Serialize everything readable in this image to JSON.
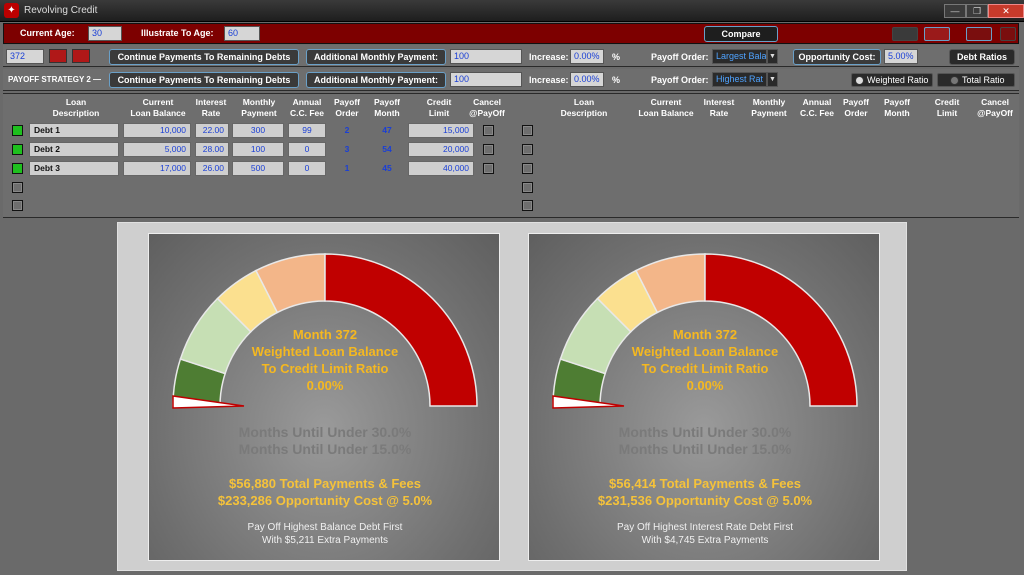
{
  "window": {
    "title": "Revolving Credit",
    "controls": [
      "—",
      "❐",
      "✕"
    ]
  },
  "ages": {
    "current_label": "Current Age:",
    "current_value": "30",
    "illustrate_label": "Illustrate To Age:",
    "illustrate_value": "60",
    "compare_label": "Compare"
  },
  "strategy1": {
    "month_value": "372",
    "continue_label": "Continue Payments To Remaining Debts",
    "additional_label": "Additional Monthly Payment:",
    "additional_value": "100",
    "increase_label": "Increase:",
    "increase_value": "0.00%",
    "pct": "%",
    "order_label": "Payoff Order:",
    "order_value": "Largest Bala",
    "opp_label": "Opportunity Cost:",
    "opp_value": "5.00%",
    "debt_ratios_label": "Debt Ratios"
  },
  "strategy2": {
    "title": "PAYOFF STRATEGY 2 —",
    "continue_label": "Continue Payments To Remaining Debts",
    "additional_label": "Additional Monthly Payment:",
    "additional_value": "100",
    "increase_label": "Increase:",
    "increase_value": "0.00%",
    "pct": "%",
    "order_label": "Payoff Order:",
    "order_value": "Highest Rat",
    "weighted_label": "Weighted Ratio",
    "total_label": "Total Ratio"
  },
  "table": {
    "headers": [
      "Loan\nDescription",
      "Current\nLoan Balance",
      "Interest\nRate",
      "Monthly\nPayment",
      "Annual\nC.C. Fee",
      "Payoff\nOrder",
      "Payoff\nMonth",
      "Credit\nLimit",
      "Cancel\n@PayOff"
    ],
    "rows": [
      {
        "desc": "Debt 1",
        "balance": "10,000",
        "rate": "22.00",
        "payment": "300",
        "fee": "99",
        "order": "2",
        "month": "47",
        "limit": "15,000"
      },
      {
        "desc": "Debt 2",
        "balance": "5,000",
        "rate": "28.00",
        "payment": "100",
        "fee": "0",
        "order": "3",
        "month": "54",
        "limit": "20,000"
      },
      {
        "desc": "Debt 3",
        "balance": "17,000",
        "rate": "26.00",
        "payment": "500",
        "fee": "0",
        "order": "1",
        "month": "45",
        "limit": "40,000"
      }
    ]
  },
  "gauges": [
    {
      "month": "Month 372",
      "line1": "Weighted Loan Balance",
      "line2": "To Credit Limit Ratio",
      "ratio": "0.00%",
      "level": 0.0,
      "ghost1": "Months Until Under 30.0%",
      "ghost2": "Months Until Under 15.0%",
      "total": "$56,880 Total Payments & Fees",
      "opp": "$233,286 Opportunity Cost @ 5.0%",
      "note1": "Pay Off Highest Balance Debt First",
      "note2": "With $5,211 Extra Payments"
    },
    {
      "month": "Month 372",
      "line1": "Weighted Loan Balance",
      "line2": "To Credit Limit Ratio",
      "ratio": "0.00%",
      "level": 0.0,
      "ghost1": "Months Until Under 30.0%",
      "ghost2": "Months Until Under 15.0%",
      "total": "$56,414 Total Payments & Fees",
      "opp": "$231,536 Opportunity Cost @ 5.0%",
      "note1": "Pay Off Highest Interest Rate Debt First",
      "note2": "With $4,745 Extra Payments"
    }
  ],
  "colors": {
    "title_red": "#7d0000",
    "gauge_dark_green": "#4e7d33",
    "gauge_light_green": "#c6dfb4",
    "gauge_yellow": "#fbe08f",
    "gauge_peach": "#f3b689",
    "gauge_red": "#c00000",
    "text_gold": "#f5b820"
  }
}
